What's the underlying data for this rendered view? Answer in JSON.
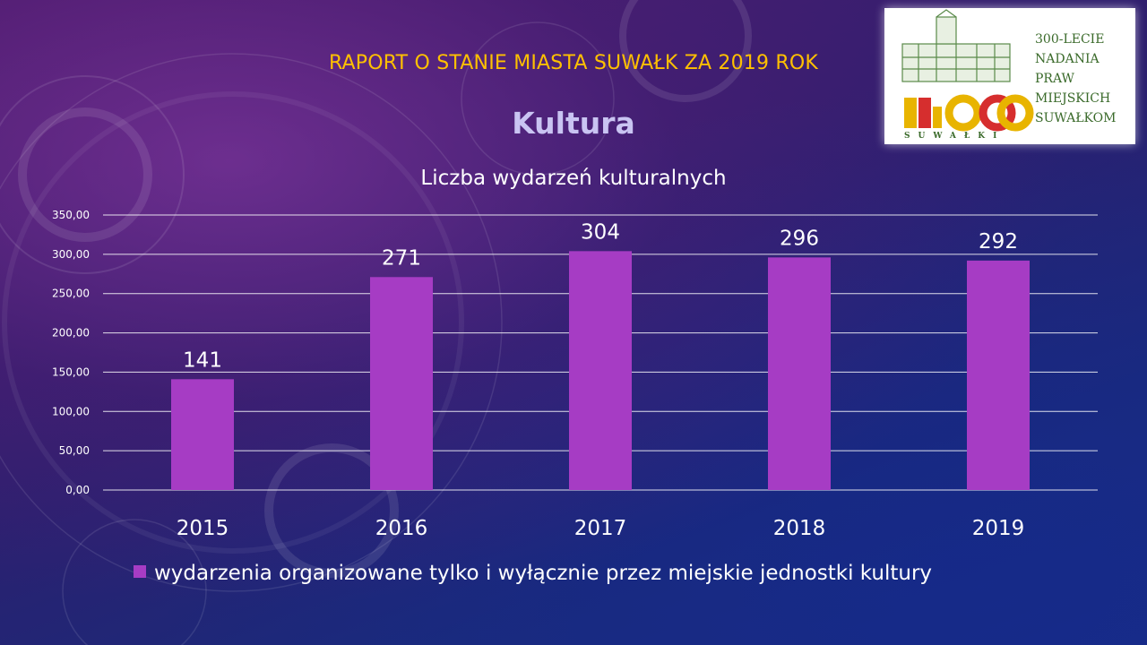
{
  "header": {
    "report_title": "RAPORT O STANIE MIASTA SUWAŁK ZA 2019 ROK",
    "section_title": "Kultura"
  },
  "logo": {
    "lines": [
      "300-LECIE",
      "NADANIA",
      "PRAW",
      "MIEJSKICH",
      "SUWAŁKOM"
    ],
    "emblem_text": "SUWAŁKI",
    "icon": "town-hall-logo-icon"
  },
  "colors": {
    "header": "#ffc000",
    "heading": "#c9c4f2",
    "bar": "#a63cc4",
    "gridline": "#ffffff",
    "text": "#ffffff"
  },
  "chart_data": {
    "type": "bar",
    "title": "Liczba wydarzeń kulturalnych",
    "categories": [
      "2015",
      "2016",
      "2017",
      "2018",
      "2019"
    ],
    "series": [
      {
        "name": "wydarzenia organizowane tylko i wyłącznie przez miejskie jednostki kultury",
        "values": [
          141,
          271,
          304,
          296,
          292
        ]
      }
    ],
    "data_labels": [
      "141",
      "271",
      "304",
      "296",
      "292"
    ],
    "ylim": [
      0,
      350
    ],
    "yticks": [
      0,
      50,
      100,
      150,
      200,
      250,
      300,
      350
    ],
    "ytick_labels": [
      "0,00",
      "50,00",
      "100,00",
      "150,00",
      "200,00",
      "250,00",
      "300,00",
      "350,00"
    ],
    "xlabel": "",
    "ylabel": "",
    "grid": true,
    "legend_position": "bottom"
  }
}
